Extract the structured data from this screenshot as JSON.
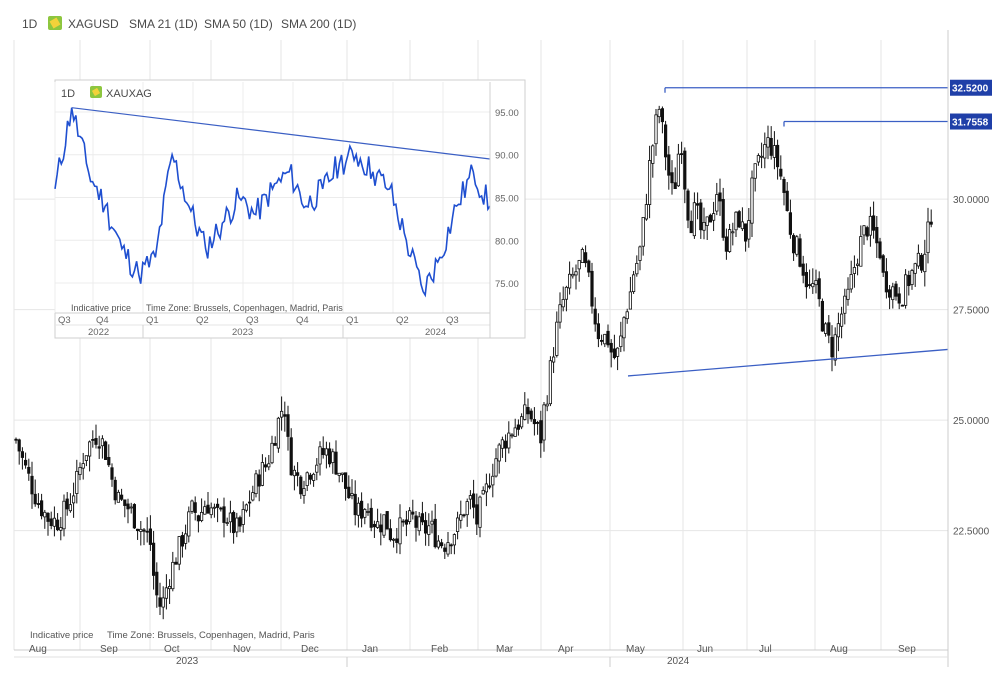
{
  "header": {
    "interval": "1D",
    "symbol": "XAGUSD",
    "indicators": [
      "SMA 21 (1D)",
      "SMA 50 (1D)",
      "SMA 200 (1D)"
    ]
  },
  "footer_note": "Indicative price",
  "footer_timezone": "Time Zone: Brussels, Copenhagen, Madrid, Paris",
  "colors": {
    "candle": "#111111",
    "trendline": "#3b5fc4",
    "inset_line": "#1f4fd0",
    "grid": "#e6e6e6",
    "badge_bg": "#1f3fa8",
    "badge_text": "#ffffff",
    "symbol_icon": "#8dc63f"
  },
  "chart_data": [
    {
      "type": "candlestick",
      "symbol": "XAGUSD",
      "interval": "1D",
      "ylim": [
        19.8,
        33.6
      ],
      "y_ticks": [
        "22.5000",
        "25.0000",
        "27.5000",
        "30.0000"
      ],
      "x_ticks": [
        "Aug",
        "Sep",
        "Oct",
        "Nov",
        "Dec",
        "Jan",
        "Feb",
        "Mar",
        "Apr",
        "May",
        "Jun",
        "Jul",
        "Aug",
        "Sep"
      ],
      "year_labels": [
        "2023",
        "2024"
      ],
      "price_levels": [
        {
          "label": "32.5200",
          "value": 32.52
        },
        {
          "label": "31.7558",
          "value": 31.7558
        }
      ],
      "series": [
        {
          "month": "Aug",
          "points": [
            [
              0,
              24.7
            ],
            [
              0.15,
              24.0
            ],
            [
              0.35,
              23.2
            ],
            [
              0.5,
              22.8
            ],
            [
              0.65,
              22.7
            ],
            [
              0.8,
              23.0
            ],
            [
              1.0,
              23.8
            ]
          ]
        },
        {
          "month": "Sep",
          "points": [
            [
              0,
              23.9
            ],
            [
              0.05,
              24.2
            ],
            [
              0.15,
              24.5
            ],
            [
              0.25,
              24.7
            ],
            [
              0.35,
              24.4
            ],
            [
              0.45,
              23.7
            ],
            [
              0.55,
              23.2
            ],
            [
              0.7,
              23.0
            ],
            [
              0.85,
              22.6
            ],
            [
              1.0,
              22.3
            ]
          ]
        },
        {
          "month": "Oct",
          "points": [
            [
              0,
              22.3
            ],
            [
              0.08,
              21.2
            ],
            [
              0.15,
              20.8
            ],
            [
              0.22,
              20.9
            ],
            [
              0.3,
              21.4
            ],
            [
              0.4,
              21.8
            ],
            [
              0.5,
              22.2
            ],
            [
              0.6,
              22.6
            ],
            [
              0.7,
              23.0
            ],
            [
              0.8,
              22.8
            ],
            [
              0.9,
              23.1
            ],
            [
              1.0,
              23.1
            ]
          ]
        },
        {
          "month": "Nov",
          "points": [
            [
              0,
              23.0
            ],
            [
              0.1,
              22.8
            ],
            [
              0.2,
              22.9
            ],
            [
              0.3,
              22.6
            ],
            [
              0.4,
              22.5
            ],
            [
              0.5,
              23.0
            ],
            [
              0.6,
              23.4
            ],
            [
              0.7,
              23.8
            ],
            [
              0.8,
              24.0
            ],
            [
              0.9,
              24.6
            ],
            [
              1.0,
              25.2
            ]
          ]
        },
        {
          "month": "Dec",
          "points": [
            [
              0,
              25.2
            ],
            [
              0.05,
              25.4
            ],
            [
              0.12,
              24.2
            ],
            [
              0.2,
              23.8
            ],
            [
              0.3,
              23.6
            ],
            [
              0.4,
              23.8
            ],
            [
              0.5,
              24.0
            ],
            [
              0.6,
              24.2
            ],
            [
              0.7,
              24.3
            ],
            [
              0.8,
              24.1
            ],
            [
              0.9,
              23.8
            ],
            [
              1.0,
              23.4
            ]
          ]
        },
        {
          "month": "Jan",
          "points": [
            [
              0,
              23.4
            ],
            [
              0.1,
              23.0
            ],
            [
              0.2,
              22.9
            ],
            [
              0.3,
              23.1
            ],
            [
              0.4,
              22.8
            ],
            [
              0.5,
              22.6
            ],
            [
              0.6,
              22.8
            ],
            [
              0.7,
              22.4
            ],
            [
              0.8,
              22.5
            ],
            [
              0.9,
              22.6
            ],
            [
              1.0,
              22.7
            ]
          ]
        },
        {
          "month": "Feb",
          "points": [
            [
              0,
              22.9
            ],
            [
              0.1,
              22.6
            ],
            [
              0.2,
              22.5
            ],
            [
              0.3,
              22.6
            ],
            [
              0.4,
              22.3
            ],
            [
              0.5,
              22.2
            ],
            [
              0.6,
              22.4
            ],
            [
              0.7,
              22.6
            ],
            [
              0.8,
              23.0
            ],
            [
              0.9,
              23.2
            ],
            [
              1.0,
              22.6
            ]
          ]
        },
        {
          "month": "Mar",
          "points": [
            [
              0,
              22.9
            ],
            [
              0.1,
              23.2
            ],
            [
              0.2,
              23.8
            ],
            [
              0.3,
              24.2
            ],
            [
              0.4,
              24.5
            ],
            [
              0.5,
              24.7
            ],
            [
              0.6,
              24.9
            ],
            [
              0.7,
              25.0
            ],
            [
              0.8,
              25.2
            ],
            [
              0.9,
              24.9
            ],
            [
              1.0,
              24.6
            ]
          ]
        },
        {
          "month": "Apr",
          "points": [
            [
              0,
              25.0
            ],
            [
              0.07,
              25.4
            ],
            [
              0.15,
              26.3
            ],
            [
              0.22,
              27.0
            ],
            [
              0.3,
              27.6
            ],
            [
              0.37,
              27.9
            ],
            [
              0.45,
              28.2
            ],
            [
              0.52,
              28.4
            ],
            [
              0.6,
              28.6
            ],
            [
              0.67,
              28.3
            ],
            [
              0.75,
              27.6
            ],
            [
              0.82,
              27.0
            ],
            [
              0.9,
              26.9
            ],
            [
              1.0,
              26.8
            ]
          ]
        },
        {
          "month": "May",
          "points": [
            [
              0,
              26.6
            ],
            [
              0.07,
              26.4
            ],
            [
              0.13,
              26.6
            ],
            [
              0.2,
              27.4
            ],
            [
              0.27,
              27.8
            ],
            [
              0.33,
              28.4
            ],
            [
              0.4,
              28.7
            ],
            [
              0.47,
              29.6
            ],
            [
              0.53,
              30.6
            ],
            [
              0.6,
              31.4
            ],
            [
              0.67,
              32.1
            ],
            [
              0.73,
              31.4
            ],
            [
              0.8,
              30.6
            ],
            [
              0.87,
              30.0
            ],
            [
              0.93,
              31.0
            ],
            [
              1.0,
              31.4
            ]
          ]
        },
        {
          "month": "Jun",
          "points": [
            [
              0,
              30.8
            ],
            [
              0.07,
              29.8
            ],
            [
              0.13,
              29.5
            ],
            [
              0.2,
              29.8
            ],
            [
              0.27,
              29.3
            ],
            [
              0.33,
              29.2
            ],
            [
              0.4,
              29.5
            ],
            [
              0.47,
              29.8
            ],
            [
              0.53,
              30.2
            ],
            [
              0.6,
              29.6
            ],
            [
              0.67,
              29.0
            ],
            [
              0.73,
              29.1
            ],
            [
              0.8,
              29.4
            ],
            [
              0.87,
              29.6
            ],
            [
              0.93,
              29.3
            ],
            [
              1.0,
              29.1
            ]
          ]
        },
        {
          "month": "Jul",
          "points": [
            [
              0,
              29.3
            ],
            [
              0.07,
              30.2
            ],
            [
              0.13,
              30.6
            ],
            [
              0.2,
              30.9
            ],
            [
              0.27,
              31.2
            ],
            [
              0.33,
              31.3
            ],
            [
              0.4,
              31.0
            ],
            [
              0.47,
              30.7
            ],
            [
              0.53,
              30.3
            ],
            [
              0.6,
              29.6
            ],
            [
              0.67,
              29.1
            ],
            [
              0.73,
              28.9
            ],
            [
              0.8,
              28.6
            ],
            [
              0.87,
              28.2
            ],
            [
              0.93,
              27.9
            ],
            [
              1.0,
              28.1
            ]
          ]
        },
        {
          "month": "Aug",
          "points": [
            [
              0,
              28.0
            ],
            [
              0.07,
              27.6
            ],
            [
              0.13,
              27.1
            ],
            [
              0.2,
              26.8
            ],
            [
              0.27,
              26.6
            ],
            [
              0.33,
              27.0
            ],
            [
              0.4,
              27.4
            ],
            [
              0.47,
              27.6
            ],
            [
              0.53,
              28.0
            ],
            [
              0.6,
              28.5
            ],
            [
              0.67,
              28.9
            ],
            [
              0.73,
              29.2
            ],
            [
              0.8,
              29.4
            ],
            [
              0.87,
              29.3
            ],
            [
              0.93,
              29.0
            ],
            [
              1.0,
              28.8
            ]
          ]
        },
        {
          "month": "Sep",
          "points": [
            [
              0,
              28.3
            ],
            [
              0.15,
              28.0
            ],
            [
              0.3,
              27.8
            ],
            [
              0.45,
              28.3
            ],
            [
              0.6,
              28.6
            ],
            [
              0.7,
              29.2
            ],
            [
              0.8,
              30.2
            ],
            [
              0.9,
              31.0
            ],
            [
              1.0,
              31.2
            ]
          ]
        }
      ],
      "trendlines": [
        {
          "type": "horizontal",
          "value": 32.52,
          "from_month": "May"
        },
        {
          "type": "horizontal",
          "value": 31.7558,
          "from_month": "Jul"
        },
        {
          "type": "support",
          "from": {
            "month": "May",
            "value": 26.0
          },
          "to": {
            "month": "Sep",
            "value": 26.6
          }
        }
      ]
    },
    {
      "type": "line",
      "symbol": "XAUXAG",
      "interval": "1D",
      "ylim": [
        71.5,
        98.5
      ],
      "y_ticks": [
        "75.00",
        "80.00",
        "85.00",
        "90.00",
        "95.00"
      ],
      "x_ticks": [
        "Q3",
        "Q4",
        "Q1",
        "Q2",
        "Q3",
        "Q4",
        "Q1",
        "Q2",
        "Q3"
      ],
      "year_labels": [
        "2022",
        "2023",
        "2024"
      ],
      "x": [
        "2022-07",
        "2022-08",
        "2022-09",
        "2022-10",
        "2022-11",
        "2022-12",
        "2023-01",
        "2023-02",
        "2023-03",
        "2023-04",
        "2023-05",
        "2023-06",
        "2023-07",
        "2023-08",
        "2023-09",
        "2023-10",
        "2023-11",
        "2023-12",
        "2024-01",
        "2024-02",
        "2024-03",
        "2024-04",
        "2024-05",
        "2024-06",
        "2024-07",
        "2024-08",
        "2024-09"
      ],
      "values": [
        86,
        95.5,
        88,
        84,
        79,
        76,
        78,
        90,
        84,
        79,
        82,
        85,
        83,
        86,
        88,
        84,
        86,
        89,
        90,
        88,
        86,
        80,
        74,
        78,
        84,
        88,
        84
      ],
      "trendline": {
        "from": {
          "x": "2022-08",
          "value": 95.5
        },
        "to": {
          "x": "2024-09",
          "value": 89.5
        }
      }
    }
  ]
}
